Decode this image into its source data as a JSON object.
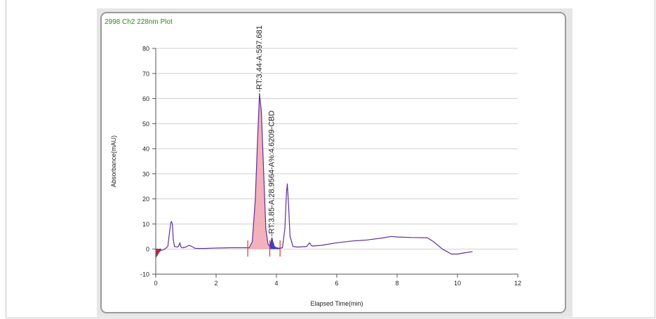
{
  "chart_data": {
    "type": "line",
    "title": "2998 Ch2 228nm Plot",
    "xlabel": "Elapsed Time(min)",
    "ylabel": "Absorbance(mAU)",
    "xlim": [
      0,
      12
    ],
    "ylim": [
      -10,
      80
    ],
    "xticks": [
      0,
      2,
      4,
      6,
      8,
      10,
      12
    ],
    "yticks": [
      -10,
      0,
      10,
      20,
      30,
      40,
      50,
      60,
      70,
      80
    ],
    "grid": "horizontal",
    "line_color": "#5a2fa0",
    "series": [
      {
        "values_x": [
          0.0,
          0.1,
          0.2,
          0.3,
          0.4,
          0.45,
          0.5,
          0.52,
          0.55,
          0.58,
          0.62,
          0.7,
          0.75,
          0.8,
          0.83,
          0.86,
          0.9,
          1.0,
          1.1,
          1.2,
          1.3,
          1.4,
          1.6,
          2.0,
          2.5,
          3.0,
          3.1,
          3.2,
          3.3,
          3.38,
          3.44,
          3.5,
          3.58,
          3.65,
          3.72,
          3.78,
          3.82,
          3.85,
          3.88,
          3.93,
          4.0,
          4.1,
          4.2,
          4.28,
          4.33,
          4.36,
          4.4,
          4.45,
          4.55,
          4.7,
          5.0,
          5.1,
          5.15,
          5.2,
          5.5,
          6.0,
          6.5,
          7.0,
          7.5,
          7.8,
          8.0,
          8.5,
          9.0,
          9.2,
          9.5,
          9.8,
          10.0,
          10.2,
          10.5
        ],
        "values_y": [
          -1.5,
          -1.0,
          -0.5,
          0.0,
          1.0,
          6.0,
          10.5,
          11.0,
          10.0,
          4.0,
          1.0,
          0.8,
          1.0,
          2.5,
          1.0,
          0.6,
          0.6,
          0.8,
          1.5,
          1.0,
          0.3,
          0.2,
          0.2,
          0.4,
          0.5,
          0.5,
          0.6,
          3.0,
          20.0,
          45.0,
          62.0,
          55.0,
          30.0,
          8.0,
          2.0,
          1.0,
          3.0,
          4.5,
          3.0,
          1.0,
          0.5,
          0.3,
          0.5,
          8.0,
          22.0,
          26.0,
          18.0,
          5.0,
          1.0,
          0.8,
          1.0,
          2.5,
          1.5,
          1.2,
          1.5,
          2.5,
          3.2,
          3.6,
          4.4,
          5.0,
          4.8,
          4.6,
          4.5,
          3.0,
          0.0,
          -2.0,
          -2.0,
          -1.6,
          -1.0
        ]
      }
    ],
    "peaks": [
      {
        "label": "-RT:3.44-A:597.681",
        "rt": 3.44,
        "height": 62.0,
        "start": 3.05,
        "end": 3.78,
        "fill": "#f2a8b4"
      },
      {
        "label": "-RT:3.85-A:28.9564-A%:4.6209-CBD",
        "rt": 3.85,
        "height": 4.5,
        "start": 3.78,
        "end": 4.12,
        "fill": "#1c2fcf"
      }
    ],
    "baseline_markers_x": [
      3.05,
      3.78,
      4.12
    ]
  }
}
